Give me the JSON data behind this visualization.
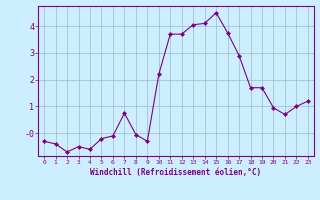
{
  "x": [
    0,
    1,
    2,
    3,
    4,
    5,
    6,
    7,
    8,
    9,
    10,
    11,
    12,
    13,
    14,
    15,
    16,
    17,
    18,
    19,
    20,
    21,
    22,
    23
  ],
  "y": [
    -0.3,
    -0.4,
    -0.7,
    -0.5,
    -0.6,
    -0.2,
    -0.1,
    0.75,
    -0.05,
    -0.3,
    2.2,
    3.7,
    3.7,
    4.05,
    4.1,
    4.5,
    3.75,
    2.9,
    1.7,
    1.7,
    0.95,
    0.7,
    1.0,
    1.2
  ],
  "line_color": "#800080",
  "marker": "D",
  "marker_size": 2,
  "bg_color": "#cceeff",
  "grid_color": "#99bbcc",
  "xlabel": "Windchill (Refroidissement éolien,°C)",
  "xlabel_color": "#800080",
  "tick_color": "#800080",
  "ylim": [
    -0.85,
    4.75
  ],
  "xlim": [
    -0.5,
    23.5
  ],
  "yticks": [
    0,
    1,
    2,
    3,
    4
  ],
  "ytick_labels": [
    "-0",
    "1",
    "2",
    "3",
    "4"
  ],
  "xticks": [
    0,
    1,
    2,
    3,
    4,
    5,
    6,
    7,
    8,
    9,
    10,
    11,
    12,
    13,
    14,
    15,
    16,
    17,
    18,
    19,
    20,
    21,
    22,
    23
  ]
}
